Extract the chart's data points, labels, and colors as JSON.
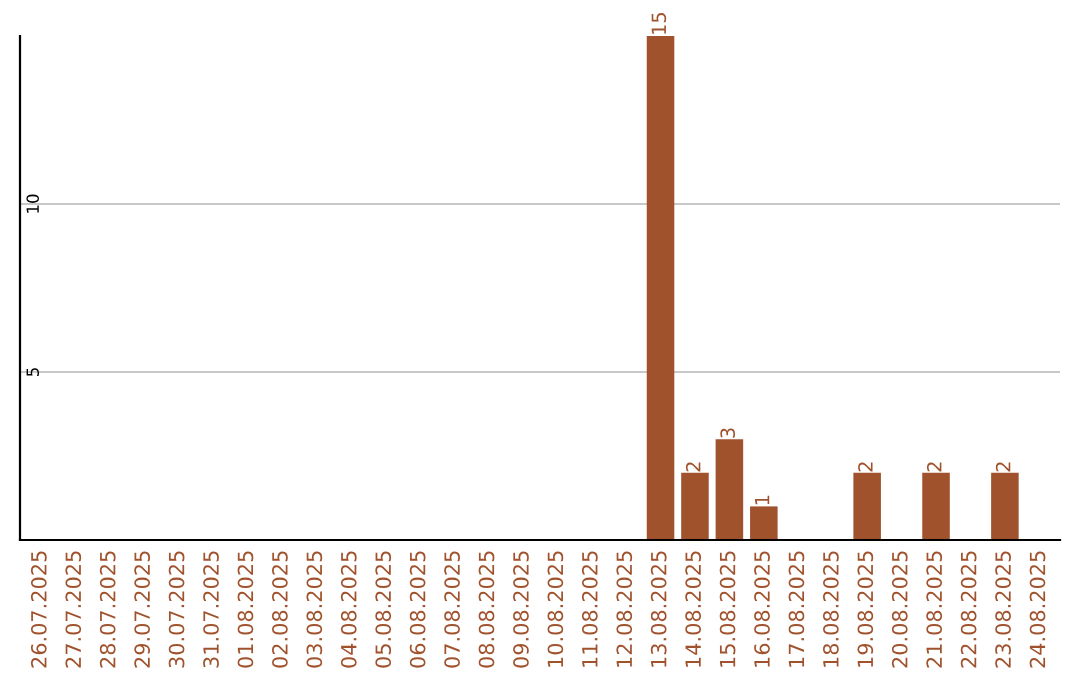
{
  "chart_data": {
    "type": "bar",
    "categories": [
      "26.07.2025",
      "27.07.2025",
      "28.07.2025",
      "29.07.2025",
      "30.07.2025",
      "31.07.2025",
      "01.08.2025",
      "02.08.2025",
      "03.08.2025",
      "04.08.2025",
      "05.08.2025",
      "06.08.2025",
      "07.08.2025",
      "08.08.2025",
      "09.08.2025",
      "10.08.2025",
      "11.08.2025",
      "12.08.2025",
      "13.08.2025",
      "14.08.2025",
      "15.08.2025",
      "16.08.2025",
      "17.08.2025",
      "18.08.2025",
      "19.08.2025",
      "20.08.2025",
      "21.08.2025",
      "22.08.2025",
      "23.08.2025",
      "24.08.2025"
    ],
    "values": [
      0,
      0,
      0,
      0,
      0,
      0,
      0,
      0,
      0,
      0,
      0,
      0,
      0,
      0,
      0,
      0,
      0,
      0,
      15,
      2,
      3,
      1,
      0,
      0,
      2,
      0,
      2,
      0,
      2,
      0
    ],
    "value_labels": [
      null,
      null,
      null,
      null,
      null,
      null,
      null,
      null,
      null,
      null,
      null,
      null,
      null,
      null,
      null,
      null,
      null,
      null,
      "15",
      "2",
      "3",
      "1",
      null,
      null,
      "2",
      null,
      "2",
      null,
      "2",
      null
    ],
    "color": "#a0522d",
    "ylim": [
      0,
      15
    ],
    "yticks": [
      5,
      10
    ],
    "grid": "y",
    "legend": false
  }
}
